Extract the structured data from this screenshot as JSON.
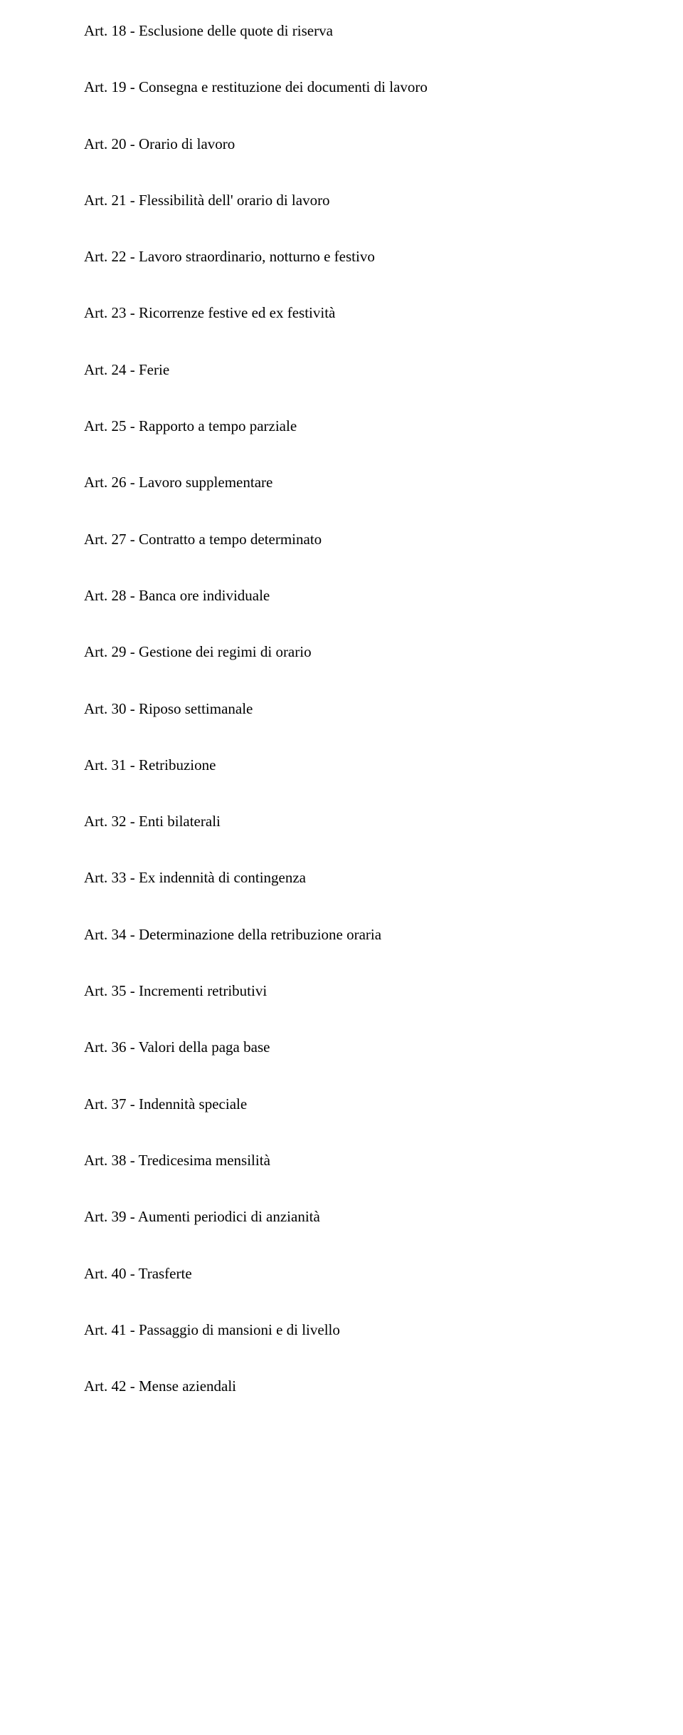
{
  "articles": [
    {
      "text": "Art. 18 - Esclusione delle quote di riserva"
    },
    {
      "text": "Art. 19 - Consegna e restituzione dei documenti di lavoro"
    },
    {
      "text": "Art. 20 - Orario di lavoro"
    },
    {
      "text": "Art. 21 - Flessibilità dell' orario di lavoro"
    },
    {
      "text": "Art. 22 - Lavoro straordinario, notturno e festivo"
    },
    {
      "text": "Art. 23 - Ricorrenze festive ed ex festività"
    },
    {
      "text": "Art. 24 - Ferie"
    },
    {
      "text": "Art. 25 - Rapporto a tempo parziale"
    },
    {
      "text": "Art. 26 - Lavoro supplementare"
    },
    {
      "text": "Art. 27 - Contratto a tempo determinato"
    },
    {
      "text": "Art. 28 - Banca ore individuale"
    },
    {
      "text": "Art. 29 - Gestione dei regimi di orario"
    },
    {
      "text": "Art. 30 - Riposo settimanale"
    },
    {
      "text": "Art. 31 - Retribuzione"
    },
    {
      "text": "Art. 32 - Enti bilaterali"
    },
    {
      "text": "Art. 33 - Ex indennità di contingenza"
    },
    {
      "text": "Art. 34 - Determinazione della retribuzione oraria"
    },
    {
      "text": "Art. 35 - Incrementi retributivi"
    },
    {
      "text": "Art. 36 - Valori della paga base"
    },
    {
      "text": "Art. 37 - Indennità speciale"
    },
    {
      "text": "Art. 38 - Tredicesima mensilità"
    },
    {
      "text": "Art. 39 - Aumenti periodici di anzianità"
    },
    {
      "text": "Art. 40 - Trasferte"
    },
    {
      "text": "Art. 41 - Passaggio di mansioni e di livello"
    },
    {
      "text": "Art. 42 - Mense aziendali"
    }
  ]
}
